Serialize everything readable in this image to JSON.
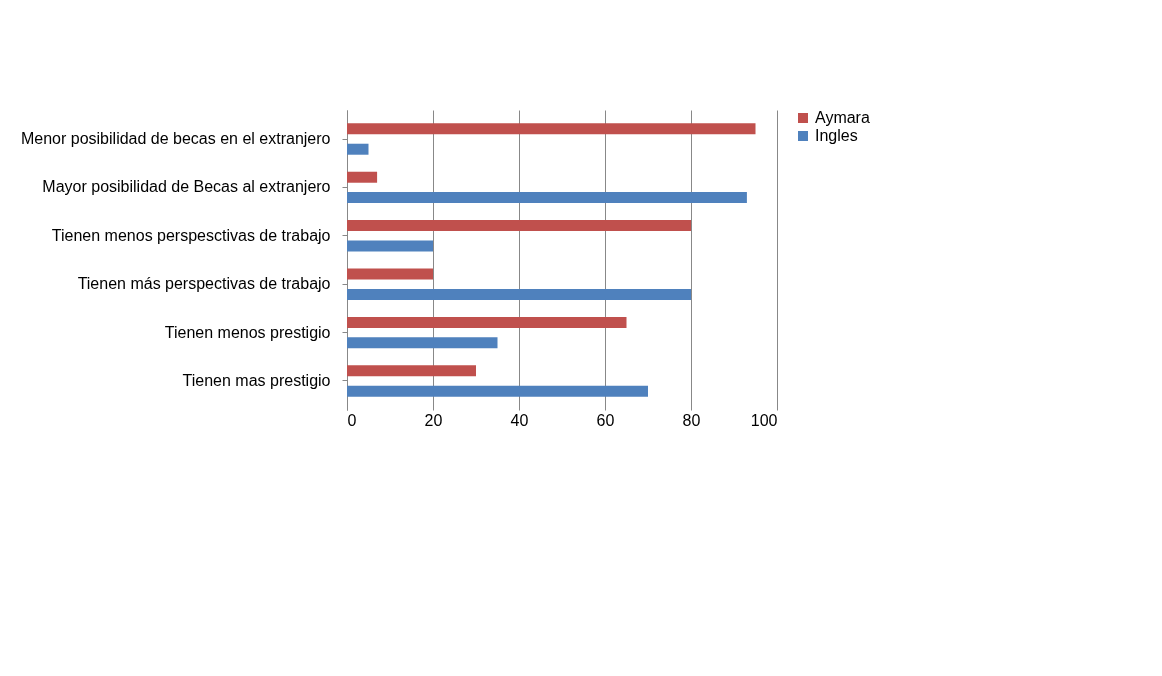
{
  "chart_data": {
    "type": "bar",
    "orientation": "horizontal",
    "categories": [
      "Menor posibilidad de becas en el extranjero",
      "Mayor posibilidad de Becas al extranjero",
      "Tienen menos perspesctivas de trabajo",
      "Tienen más perspectivas de trabajo",
      "Tienen menos prestigio",
      "Tienen mas prestigio"
    ],
    "series": [
      {
        "name": "Aymara",
        "color": "#c0504d",
        "values": [
          95,
          7,
          80,
          20,
          65,
          30
        ]
      },
      {
        "name": "Ingles",
        "color": "#4f81bd",
        "values": [
          5,
          93,
          20,
          80,
          35,
          70
        ]
      }
    ],
    "xlim": [
      0,
      100
    ],
    "xticks": [
      0,
      20,
      40,
      60,
      80,
      100
    ],
    "grid": "x",
    "legend": "right"
  }
}
